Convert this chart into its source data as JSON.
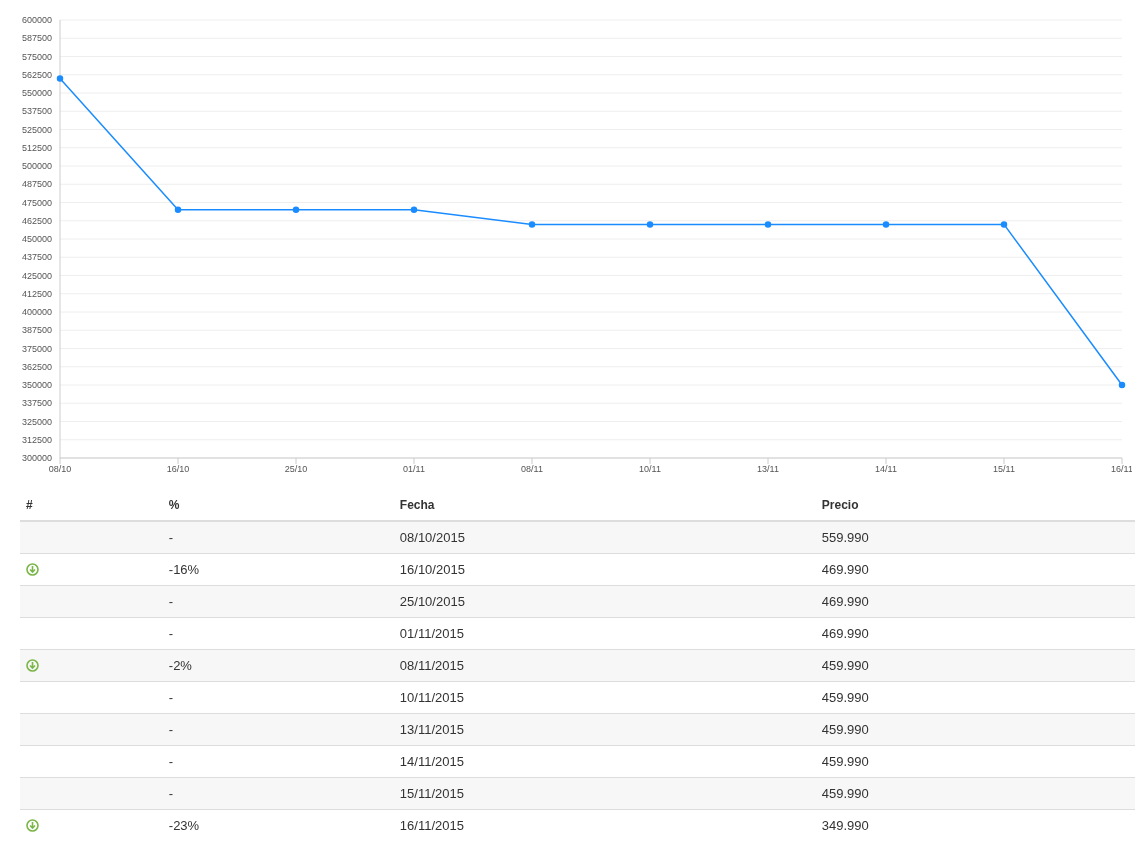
{
  "chart_data": {
    "type": "line",
    "categories": [
      "08/10",
      "16/10",
      "25/10",
      "01/11",
      "08/11",
      "10/11",
      "13/11",
      "14/11",
      "15/11",
      "16/11"
    ],
    "series": [
      {
        "color": "#1a8cff",
        "values": [
          559990,
          469990,
          469990,
          469990,
          459990,
          459990,
          459990,
          459990,
          459990,
          349990
        ]
      }
    ],
    "value_labels": [
      "559.990",
      "469.990",
      "469.990",
      "469.990",
      "459.990",
      "459.990",
      "459.990",
      "459.990",
      "459.990",
      "349.990"
    ],
    "ylim": [
      300000,
      600000
    ],
    "yticks": [
      300000,
      312500,
      325000,
      337500,
      350000,
      362500,
      375000,
      387500,
      400000,
      412500,
      425000,
      437500,
      450000,
      462500,
      475000,
      487500,
      500000,
      512500,
      525000,
      537500,
      550000,
      562500,
      575000,
      587500,
      600000
    ],
    "grid": "y",
    "marker": "circle",
    "line_style": "solid",
    "legend": false,
    "annotations": [
      "#",
      "%",
      "Fecha",
      "Precio",
      "-",
      "-16%",
      "-",
      "-",
      "-2%",
      "-",
      "-",
      "-",
      "-",
      "-23%",
      "08/10/2015",
      "16/10/2015",
      "25/10/2015",
      "01/11/2015",
      "08/11/2015",
      "10/11/2015",
      "13/11/2015",
      "14/11/2015",
      "15/11/2015",
      "16/11/2015"
    ]
  }
}
